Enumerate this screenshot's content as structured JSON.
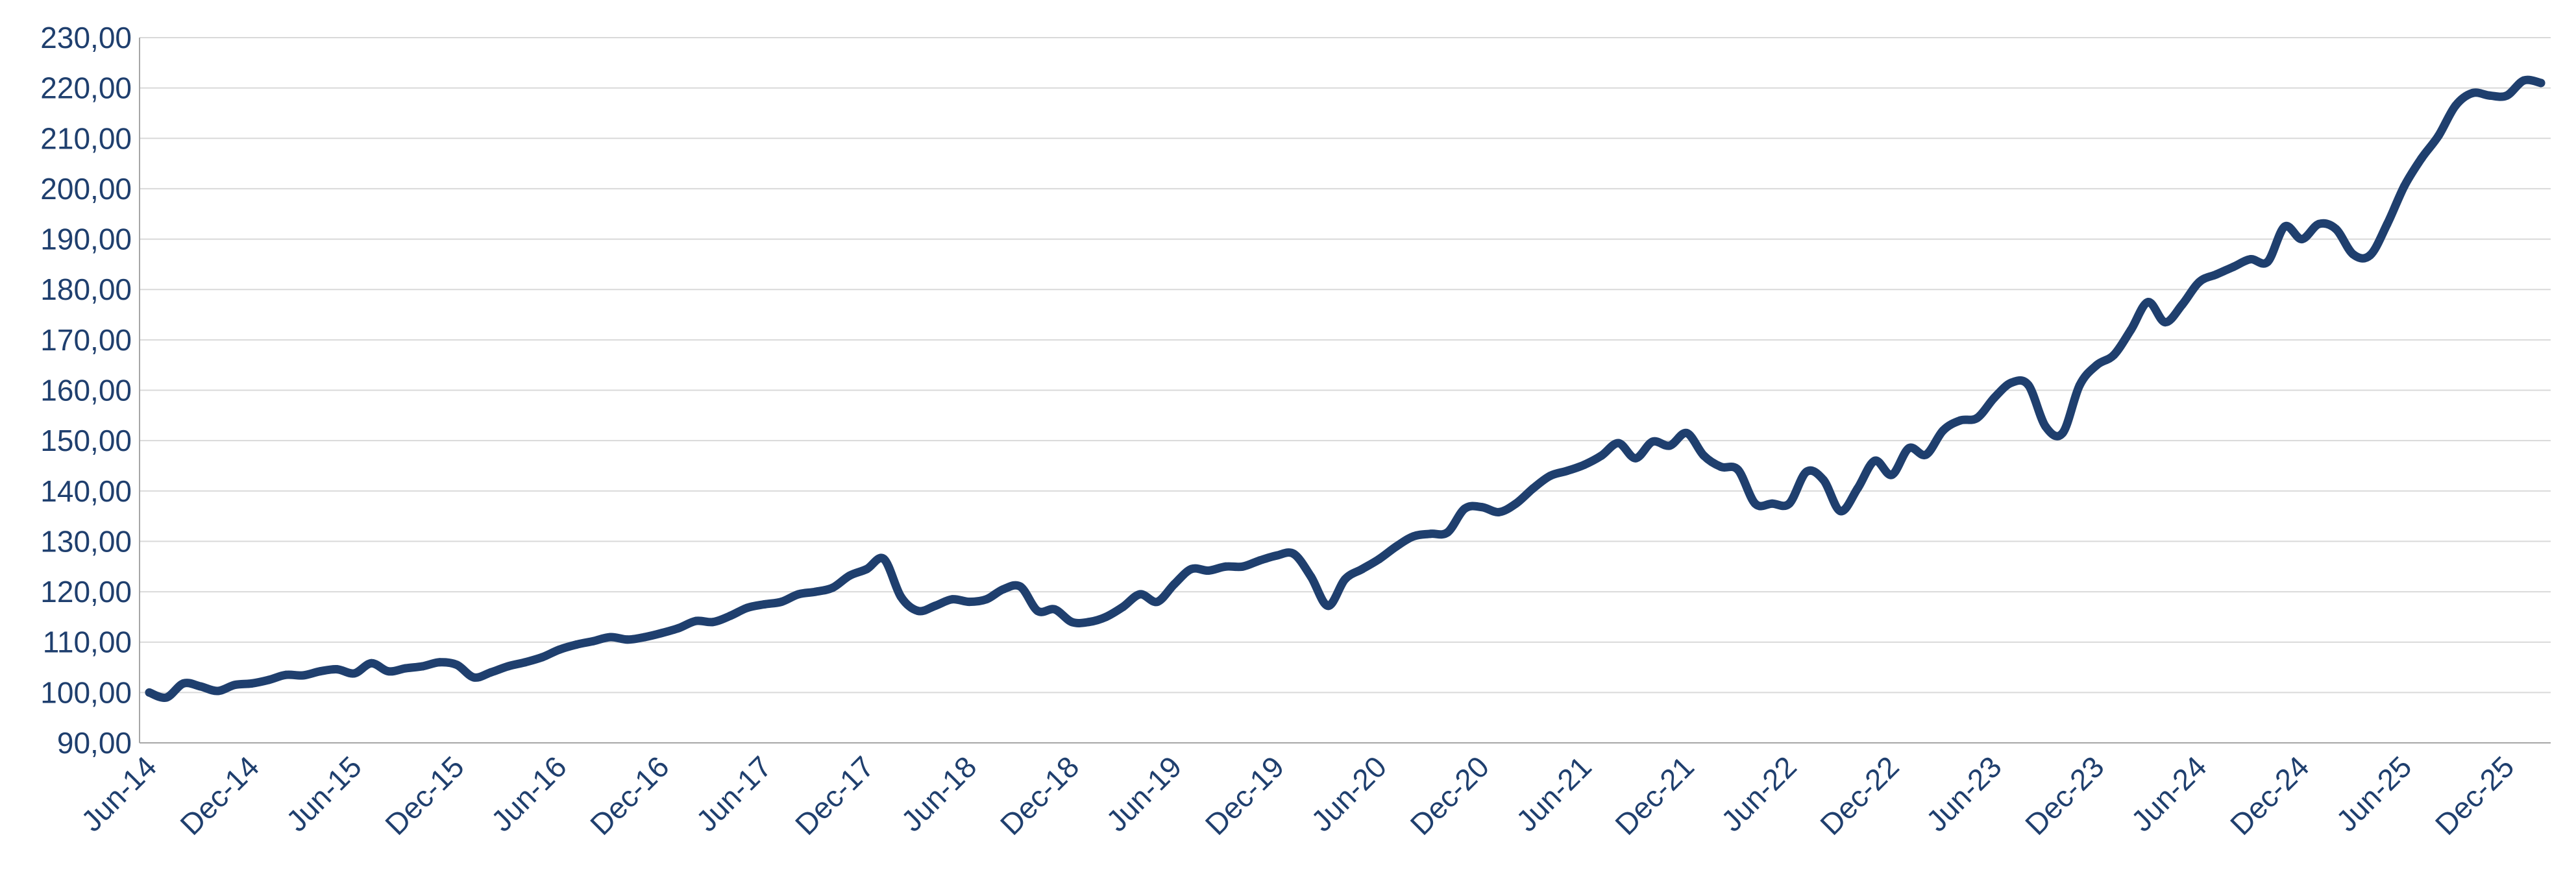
{
  "chart_data": {
    "type": "line",
    "title": "",
    "xlabel": "",
    "ylabel": "",
    "ylim": [
      90,
      230
    ],
    "y_ticks": [
      "90,00",
      "100,00",
      "110,00",
      "120,00",
      "130,00",
      "140,00",
      "150,00",
      "160,00",
      "170,00",
      "180,00",
      "190,00",
      "200,00",
      "210,00",
      "220,00",
      "230,00"
    ],
    "x_ticks": [
      "Jun-14",
      "Dec-14",
      "Jun-15",
      "Dec-15",
      "Jun-16",
      "Dec-16",
      "Jun-17",
      "Dec-17",
      "Jun-18",
      "Dec-18",
      "Jun-19",
      "Dec-19",
      "Jun-20",
      "Dec-20",
      "Jun-21",
      "Dec-21",
      "Jun-22",
      "Dec-22",
      "Jun-23",
      "Dec-23",
      "Jun-24",
      "Dec-24",
      "Jun-25",
      "Dec-25"
    ],
    "grid": true,
    "legend": "none",
    "colors": {
      "line": "#1F3F6E",
      "axis_text": "#1F3F6E",
      "grid": "#D9D9D9",
      "axis": "#A6A6A6"
    },
    "series": [
      {
        "x": [
          "Jun-14",
          "Jul-14",
          "Aug-14",
          "Sep-14",
          "Oct-14",
          "Nov-14",
          "Dec-14",
          "Jan-15",
          "Feb-15",
          "Mar-15",
          "Apr-15",
          "May-15",
          "Jun-15",
          "Jul-15",
          "Aug-15",
          "Sep-15",
          "Oct-15",
          "Nov-15",
          "Dec-15",
          "Jan-16",
          "Feb-16",
          "Mar-16",
          "Apr-16",
          "May-16",
          "Jun-16",
          "Jul-16",
          "Aug-16",
          "Sep-16",
          "Oct-16",
          "Nov-16",
          "Dec-16",
          "Jan-17",
          "Feb-17",
          "Mar-17",
          "Apr-17",
          "May-17",
          "Jun-17",
          "Jul-17",
          "Aug-17",
          "Sep-17",
          "Oct-17",
          "Nov-17",
          "Dec-17",
          "Jan-18",
          "Feb-18",
          "Mar-18",
          "Apr-18",
          "May-18",
          "Jun-18",
          "Jul-18",
          "Aug-18",
          "Sep-18",
          "Oct-18",
          "Nov-18",
          "Dec-18",
          "Jan-19",
          "Feb-19",
          "Mar-19",
          "Apr-19",
          "May-19",
          "Jun-19",
          "Jul-19",
          "Aug-19",
          "Sep-19",
          "Oct-19",
          "Nov-19",
          "Dec-19",
          "Jan-20",
          "Feb-20",
          "Mar-20",
          "Apr-20",
          "May-20",
          "Jun-20",
          "Jul-20",
          "Aug-20",
          "Sep-20",
          "Oct-20",
          "Nov-20",
          "Dec-20",
          "Jan-21",
          "Feb-21",
          "Mar-21",
          "Apr-21",
          "May-21",
          "Jun-21",
          "Jul-21",
          "Aug-21",
          "Sep-21",
          "Oct-21",
          "Nov-21",
          "Dec-21",
          "Jan-22",
          "Feb-22",
          "Mar-22",
          "Apr-22",
          "May-22",
          "Jun-22",
          "Jul-22",
          "Aug-22",
          "Sep-22",
          "Oct-22",
          "Nov-22",
          "Dec-22",
          "Jan-23",
          "Feb-23",
          "Mar-23",
          "Apr-23",
          "May-23",
          "Jun-23",
          "Jul-23",
          "Aug-23",
          "Sep-23",
          "Oct-23",
          "Nov-23",
          "Dec-23",
          "Jan-24",
          "Feb-24",
          "Mar-24",
          "Apr-24",
          "May-24",
          "Jun-24",
          "Jul-24",
          "Aug-24",
          "Sep-24",
          "Oct-24",
          "Nov-24",
          "Dec-24",
          "Jan-25",
          "Feb-25",
          "Mar-25",
          "Apr-25",
          "May-25",
          "Jun-25",
          "Jul-25",
          "Aug-25",
          "Sep-25",
          "Oct-25",
          "Nov-25",
          "Dec-25",
          "Jan-26",
          "Feb-26"
        ],
        "values": [
          100.0,
          99.0,
          101.8,
          101.2,
          100.3,
          101.5,
          101.8,
          102.5,
          103.5,
          103.4,
          104.2,
          104.6,
          103.8,
          105.8,
          104.2,
          104.8,
          105.2,
          106.0,
          105.5,
          103.0,
          104.0,
          105.2,
          106.0,
          107.0,
          108.5,
          109.5,
          110.2,
          111.0,
          110.5,
          111.0,
          111.8,
          112.8,
          114.2,
          114.0,
          115.2,
          116.8,
          117.5,
          118.0,
          119.5,
          120.0,
          120.8,
          123.2,
          124.5,
          126.5,
          119.0,
          116.2,
          117.2,
          118.5,
          118.0,
          118.5,
          120.5,
          121.0,
          116.2,
          116.5,
          114.0,
          114.0,
          115.0,
          117.0,
          119.5,
          118.0,
          121.5,
          124.5,
          124.2,
          125.0,
          125.0,
          126.2,
          127.2,
          127.5,
          123.0,
          117.2,
          122.5,
          124.5,
          126.5,
          129.0,
          131.0,
          131.5,
          131.8,
          136.5,
          136.8,
          135.8,
          137.5,
          140.5,
          143.0,
          144.0,
          145.2,
          147.0,
          149.5,
          146.5,
          149.8,
          149.0,
          151.5,
          147.0,
          144.8,
          144.2,
          137.5,
          137.5,
          137.5,
          143.8,
          142.2,
          136.0,
          140.5,
          146.0,
          143.2,
          148.5,
          147.2,
          152.0,
          154.0,
          154.5,
          158.5,
          161.5,
          161.0,
          152.8,
          151.5,
          161.0,
          165.0,
          167.0,
          172.0,
          177.5,
          173.5,
          177.0,
          181.5,
          183.0,
          184.5,
          186.0,
          185.5,
          192.5,
          190.0,
          193.0,
          192.0,
          187.0,
          186.8,
          193.0,
          200.5,
          206.0,
          210.5,
          216.5,
          219.0,
          218.5,
          218.5,
          221.5,
          221.0
        ]
      }
    ]
  }
}
